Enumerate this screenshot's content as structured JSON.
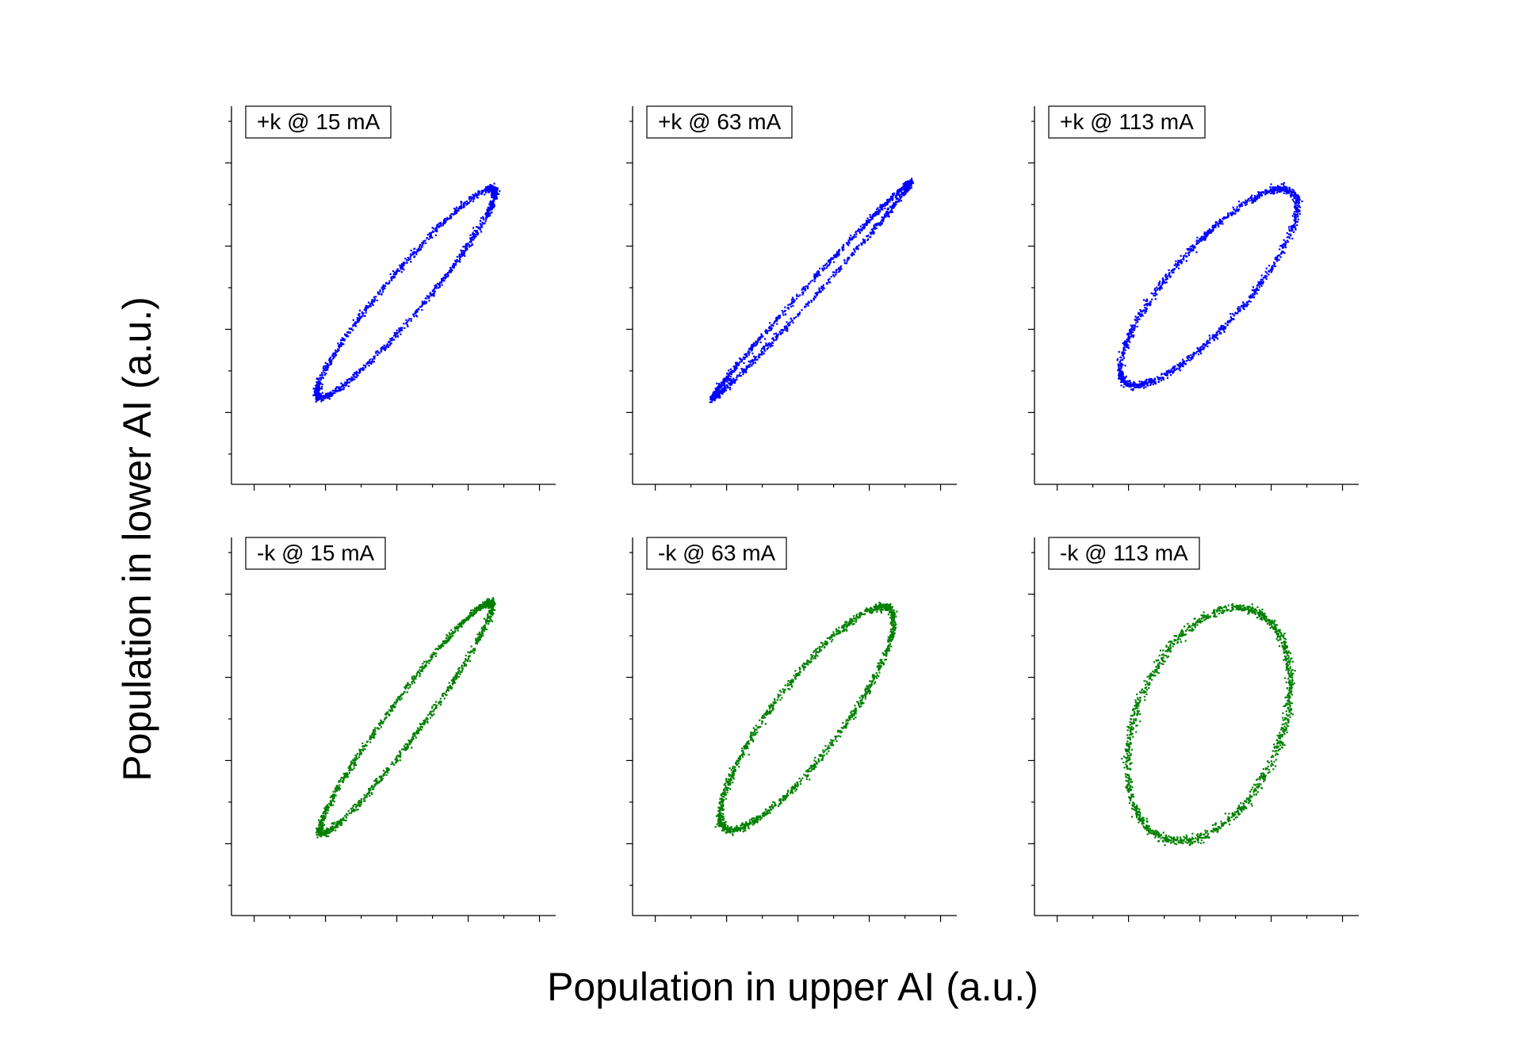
{
  "chart_data": {
    "type": "scatter",
    "xlabel": "Population in upper AI (a.u.)",
    "ylabel": "Population in lower AI (a.u.)",
    "grid": false,
    "tick_labels": false,
    "panels": [
      {
        "label": "+k @ 15 mA",
        "color": "#0000ff",
        "row": 0,
        "col": 0,
        "ellipse": {
          "cx": 0.5,
          "cy": 0.51,
          "a": 0.49,
          "b": 0.075,
          "angle_deg": 44
        }
      },
      {
        "label": "+k @ 63 mA",
        "color": "#0000ff",
        "row": 0,
        "col": 1,
        "ellipse": {
          "cx": 0.52,
          "cy": 0.52,
          "a": 0.53,
          "b": 0.022,
          "angle_deg": 42
        }
      },
      {
        "label": "+k @ 113 mA",
        "color": "#0000ff",
        "row": 0,
        "col": 2,
        "ellipse": {
          "cx": 0.5,
          "cy": 0.53,
          "a": 0.46,
          "b": 0.14,
          "angle_deg": 42
        }
      },
      {
        "label": "-k @ 15 mA",
        "color": "#008000",
        "row": 1,
        "col": 0,
        "ellipse": {
          "cx": 0.5,
          "cy": 0.53,
          "a": 0.51,
          "b": 0.065,
          "angle_deg": 48
        }
      },
      {
        "label": "-k @ 63 mA",
        "color": "#008000",
        "row": 1,
        "col": 1,
        "ellipse": {
          "cx": 0.5,
          "cy": 0.53,
          "a": 0.49,
          "b": 0.13,
          "angle_deg": 47
        }
      },
      {
        "label": "-k @ 113 mA",
        "color": "#008000",
        "row": 1,
        "col": 2,
        "ellipse": {
          "cx": 0.5,
          "cy": 0.51,
          "a": 0.42,
          "b": 0.28,
          "angle_deg": 58
        }
      }
    ]
  }
}
